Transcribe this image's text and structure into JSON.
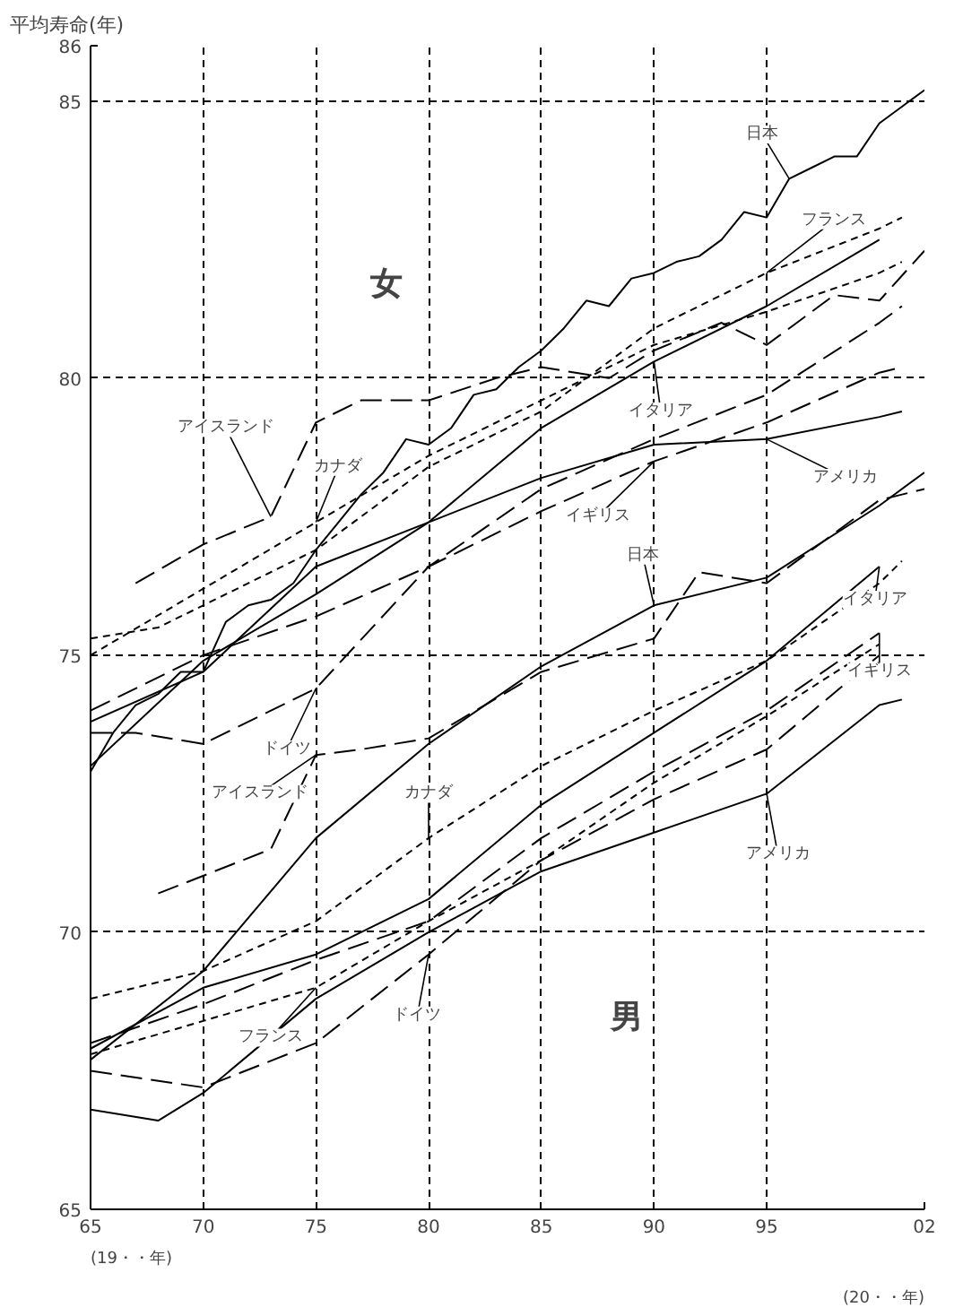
{
  "chart_data": {
    "type": "line",
    "ylabel": "平均寿命(年)",
    "xlim": [
      1965,
      2002
    ],
    "ylim": [
      65,
      86
    ],
    "xticks": [
      {
        "value": 1965,
        "label": "65"
      },
      {
        "value": 1970,
        "label": "70"
      },
      {
        "value": 1975,
        "label": "75"
      },
      {
        "value": 1980,
        "label": "80"
      },
      {
        "value": 1985,
        "label": "85"
      },
      {
        "value": 1990,
        "label": "90"
      },
      {
        "value": 1995,
        "label": "95"
      },
      {
        "value": 2002,
        "label": "02"
      }
    ],
    "yticks": [
      65,
      70,
      75,
      80,
      85,
      86
    ],
    "grid": true,
    "series": [
      {
        "color": "#000000",
        "line_style": "solid",
        "x": [
          1965,
          1966,
          1967,
          1968,
          1969,
          1970,
          1971,
          1972,
          1973,
          1974,
          1975,
          1976,
          1977,
          1978,
          1979,
          1980,
          1981,
          1982,
          1983,
          1984,
          1985,
          1986,
          1987,
          1988,
          1989,
          1990,
          1991,
          1992,
          1993,
          1994,
          1995,
          1996,
          1997,
          1998,
          1999,
          2000,
          2001,
          2002
        ],
        "values": [
          72.9,
          73.6,
          74.1,
          74.3,
          74.7,
          74.7,
          75.6,
          75.9,
          76.0,
          76.3,
          76.9,
          77.4,
          77.9,
          78.3,
          78.9,
          78.8,
          79.1,
          79.7,
          79.8,
          80.2,
          80.5,
          80.9,
          81.4,
          81.3,
          81.8,
          81.9,
          82.1,
          82.2,
          82.5,
          83.0,
          82.9,
          83.6,
          83.8,
          84.0,
          84.0,
          84.6,
          84.9,
          85.2
        ]
      },
      {
        "color": "#000000",
        "line_style": "dotted",
        "x": [
          1965,
          1968,
          1970,
          1975,
          1980,
          1985,
          1990,
          1995,
          2000,
          2001
        ],
        "values": [
          75.3,
          75.5,
          75.9,
          76.9,
          78.4,
          79.4,
          80.9,
          81.9,
          82.7,
          82.9
        ]
      },
      {
        "color": "#000000",
        "line_style": "solid",
        "x": [
          1965,
          1970,
          1975,
          1980,
          1985,
          1990,
          1995,
          2000
        ],
        "values": [
          73.0,
          74.9,
          76.1,
          77.4,
          79.1,
          80.3,
          81.3,
          82.5
        ]
      },
      {
        "color": "#000000",
        "line_style": "solid",
        "x": [
          1965,
          1970,
          1975,
          1980,
          1985,
          1990,
          1995,
          2000,
          2001
        ],
        "values": [
          73.8,
          74.7,
          76.6,
          77.4,
          78.2,
          78.8,
          78.9,
          79.3,
          79.4
        ]
      },
      {
        "color": "#000000",
        "line_style": "dashed",
        "x": [
          1965,
          1970,
          1975,
          1980,
          1985,
          1990,
          1995,
          2000,
          2001
        ],
        "values": [
          74.0,
          75.0,
          75.7,
          76.6,
          77.6,
          78.5,
          79.2,
          80.1,
          80.2
        ]
      },
      {
        "color": "#000000",
        "line_style": "dotted",
        "x": [
          1965,
          1970,
          1975,
          1980,
          1985,
          1990,
          1995,
          2000,
          2001
        ],
        "values": [
          75.0,
          76.2,
          77.4,
          78.6,
          79.6,
          80.6,
          81.2,
          81.9,
          82.1
        ]
      },
      {
        "color": "#000000",
        "line_style": "dashed",
        "x": [
          1967,
          1970,
          1973,
          1975,
          1977,
          1980,
          1983,
          1985,
          1988,
          1990,
          1993,
          1995,
          1998,
          2000,
          2002
        ],
        "values": [
          76.3,
          77.0,
          77.5,
          79.2,
          79.6,
          79.6,
          80.0,
          80.2,
          80.0,
          80.5,
          81.0,
          80.6,
          81.5,
          81.4,
          82.3
        ]
      },
      {
        "color": "#000000",
        "line_style": "dashed",
        "x": [
          1965,
          1967,
          1970,
          1975,
          1980,
          1985,
          1990,
          1995,
          2000,
          2001
        ],
        "values": [
          73.6,
          73.6,
          73.4,
          74.4,
          76.6,
          78.0,
          78.9,
          79.7,
          81.0,
          81.3
        ]
      },
      {
        "color": "#000000",
        "line_style": "solid",
        "x": [
          1965,
          1970,
          1975,
          1980,
          1985,
          1990,
          1995,
          2000,
          2002
        ],
        "values": [
          67.7,
          69.3,
          71.7,
          73.4,
          74.8,
          75.9,
          76.4,
          77.7,
          78.3
        ]
      },
      {
        "color": "#000000",
        "line_style": "dashed",
        "x": [
          1968,
          1973,
          1975,
          1977,
          1980,
          1985,
          1990,
          1992,
          1995,
          2000,
          2002
        ],
        "values": [
          70.7,
          71.5,
          73.2,
          73.3,
          73.5,
          74.7,
          75.3,
          76.5,
          76.3,
          77.8,
          78.0
        ]
      },
      {
        "color": "#000000",
        "line_style": "dotted",
        "x": [
          1965,
          1970,
          1975,
          1980,
          1985,
          1990,
          1995,
          2000,
          2001
        ],
        "values": [
          68.8,
          69.3,
          70.2,
          71.7,
          73.0,
          74.0,
          74.9,
          76.3,
          76.7
        ]
      },
      {
        "color": "#000000",
        "line_style": "solid",
        "x": [
          1965,
          1970,
          1975,
          1980,
          1985,
          1990,
          1995,
          2000
        ],
        "values": [
          67.9,
          69.0,
          69.6,
          70.6,
          72.3,
          73.6,
          74.9,
          76.6
        ]
      },
      {
        "color": "#000000",
        "line_style": "dashed",
        "x": [
          1965,
          1970,
          1975,
          1980,
          1985,
          1990,
          1995,
          2000
        ],
        "values": [
          68.0,
          68.7,
          69.5,
          70.2,
          71.7,
          72.9,
          74.0,
          75.4
        ]
      },
      {
        "color": "#000000",
        "line_style": "solid",
        "x": [
          1965,
          1968,
          1970,
          1975,
          1980,
          1985,
          1990,
          1995,
          2000,
          2001
        ],
        "values": [
          66.8,
          66.6,
          67.1,
          68.8,
          70.0,
          71.1,
          71.8,
          72.5,
          74.1,
          74.2
        ]
      },
      {
        "color": "#000000",
        "line_style": "dashed",
        "x": [
          1965,
          1970,
          1975,
          1980,
          1985,
          1990,
          1995,
          2000
        ],
        "values": [
          67.5,
          67.2,
          68.0,
          69.6,
          71.3,
          72.4,
          73.3,
          75.0
        ]
      },
      {
        "color": "#000000",
        "line_style": "dotted",
        "x": [
          1965,
          1970,
          1975,
          1980,
          1985,
          1990,
          1995,
          2000
        ],
        "values": [
          67.8,
          68.4,
          69.0,
          70.2,
          71.3,
          72.7,
          73.9,
          75.2
        ]
      }
    ],
    "annotations": [
      {
        "text": "日本",
        "x": 1996,
        "y": 83.6
      },
      {
        "text": "フランス",
        "x": 1995,
        "y": 81.9
      },
      {
        "text": "イタリア",
        "x": 1990,
        "y": 80.3
      },
      {
        "text": "アメリカ",
        "x": 1995,
        "y": 78.9
      },
      {
        "text": "イギリス",
        "x": 1990,
        "y": 78.5
      },
      {
        "text": "カナダ",
        "x": 1975,
        "y": 77.4
      },
      {
        "text": "アイスランド",
        "x": 1973,
        "y": 77.5
      },
      {
        "text": "ドイツ",
        "x": 1975,
        "y": 74.4
      },
      {
        "text": "日本",
        "x": 1990,
        "y": 75.9
      },
      {
        "text": "イタリア",
        "x": 2000,
        "y": 76.6
      },
      {
        "text": "イギリス",
        "x": 2000,
        "y": 75.4
      },
      {
        "text": "アメリカ",
        "x": 1995,
        "y": 72.5
      },
      {
        "text": "カナダ",
        "x": 1980,
        "y": 71.7
      },
      {
        "text": "アイスランド",
        "x": 1975,
        "y": 73.2
      },
      {
        "text": "ドイツ",
        "x": 1980,
        "y": 69.6
      },
      {
        "text": "フランス",
        "x": 1975,
        "y": 69.0
      },
      "女",
      "男",
      "(19・・年)",
      "(20・・年)"
    ]
  }
}
